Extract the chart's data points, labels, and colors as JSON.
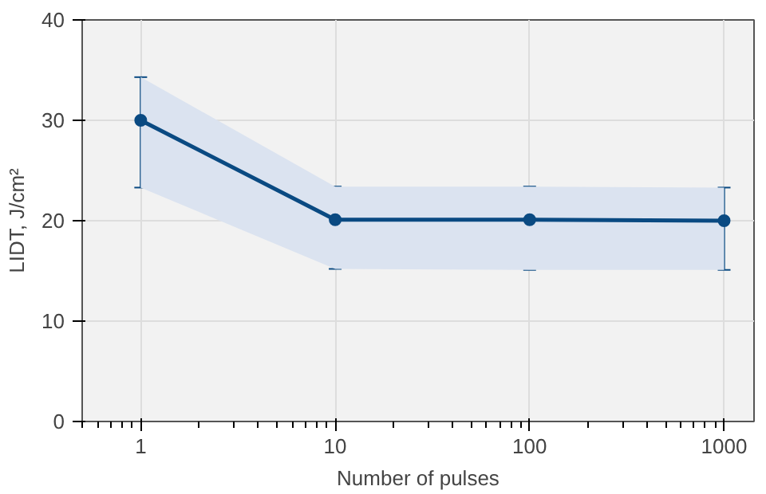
{
  "chart_data": {
    "type": "line",
    "xlabel": "Number of pulses",
    "ylabel": "LIDT, J/cm²",
    "x": [
      1,
      10,
      100,
      1000
    ],
    "log": "x",
    "series": [
      {
        "color": "#0a4a82",
        "values": [
          30.0,
          20.1,
          20.1,
          20.0
        ],
        "errors": [
          [
            23.3,
            34.3
          ],
          [
            15.2,
            23.4
          ],
          [
            15.1,
            23.4
          ],
          [
            15.1,
            23.3
          ]
        ],
        "lower": [
          23.3,
          15.2,
          15.1,
          15.1
        ],
        "upper": [
          34.3,
          23.4,
          23.4,
          23.3
        ]
      }
    ],
    "xlim": [
      0.5,
      1425
    ],
    "xticks": [
      1,
      10,
      100,
      1000
    ],
    "ylim": [
      0,
      40
    ],
    "yticks": [
      0,
      10,
      20,
      30,
      40
    ],
    "grid": true,
    "marker": "circle",
    "line_style": "solid"
  }
}
